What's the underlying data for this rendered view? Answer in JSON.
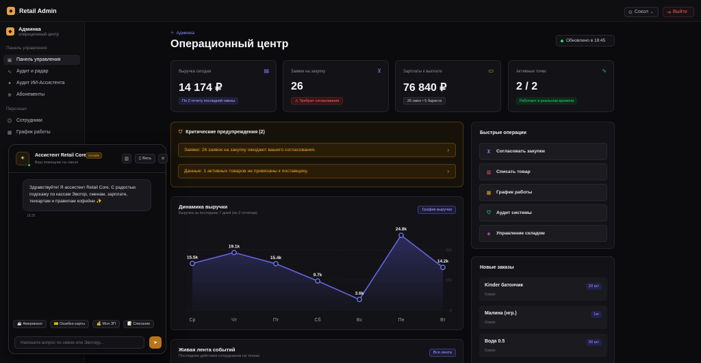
{
  "app": {
    "title": "Retail Admin"
  },
  "topbar": {
    "location": "Сокол",
    "logout": "Выйти"
  },
  "user": {
    "name": "Админка",
    "role": "операционный центр"
  },
  "sidebar": {
    "section_1": "Панель управления",
    "section_2": "Персонал",
    "items": [
      {
        "label": "Панель управления",
        "icon": "dashboard-icon"
      },
      {
        "label": "Аудит и радар",
        "icon": "activity-icon"
      },
      {
        "label": "Аудит ИИ-Ассистента",
        "icon": "sparkle-icon"
      },
      {
        "label": "Абонементы",
        "icon": "ticket-icon"
      },
      {
        "label": "Сотрудники",
        "icon": "users-icon"
      },
      {
        "label": "График работы",
        "icon": "calendar-icon"
      }
    ]
  },
  "header": {
    "breadcrumb": "Админка",
    "title": "Операционный центр",
    "updated": "Обновлено в 18:45"
  },
  "stats": [
    {
      "label": "Выручка сегодня",
      "value": "14 174 ₽",
      "badge": "По Z-отчету последней смены",
      "icon": "receipt-icon",
      "color": "#7b7bff"
    },
    {
      "label": "Заявки на закупку",
      "value": "26",
      "badge": "⚠ Требуют согласования",
      "icon": "cart-icon",
      "color": "#6b8cff"
    },
    {
      "label": "Зарплаты к выплате",
      "value": "76 840 ₽",
      "badge": "26 смен • 5 бариста",
      "icon": "wallet-icon",
      "color": "#e7a53a"
    },
    {
      "label": "Активные точки",
      "value": "2 / 2",
      "badge": "Работают в реальном времени",
      "icon": "pulse-icon",
      "color": "#2bd27a"
    }
  ],
  "alerts": {
    "title": "Критические предупреждения (2)",
    "items": [
      "Заявки: 26 заявок на закупку ожидают вашего согласования.",
      "Данные: 1 активных товаров не привязаны к поставщику."
    ]
  },
  "chart_card": {
    "title": "Динамика выручки",
    "subtitle": "Выручка за последние 7 дней (по Z-отчетам)",
    "button": "График выручки"
  },
  "chart_data": {
    "type": "area",
    "title": "Динамика выручки",
    "categories": [
      "Ср",
      "Чт",
      "Пт",
      "Сб",
      "Вс",
      "Пн",
      "Вт"
    ],
    "values": [
      15500,
      19100,
      15400,
      9700,
      3600,
      24800,
      14200
    ],
    "data_labels": [
      "15.5k",
      "19.1k",
      "15.4k",
      "9.7k",
      "3.6k",
      "24.8k",
      "14.2k"
    ],
    "y_ticks": [
      "0",
      "10k",
      "20k"
    ],
    "ylim": [
      0,
      28000
    ],
    "grid": true,
    "color": "#6565e0"
  },
  "events": {
    "title": "Живая лента событий",
    "subtitle": "Последние действия сотрудников на точках",
    "button": "Вся лента"
  },
  "quick": {
    "title": "Быстрые операции",
    "items": [
      {
        "label": "Согласовать закупки",
        "icon": "cart-icon",
        "color": "#7b7bff"
      },
      {
        "label": "Списать товар",
        "icon": "trash-icon",
        "color": "#f05a5a"
      },
      {
        "label": "График работы",
        "icon": "calendar-icon",
        "color": "#e7a53a"
      },
      {
        "label": "Аудит системы",
        "icon": "shield-icon",
        "color": "#2bd27a"
      },
      {
        "label": "Управление складом",
        "icon": "layers-icon",
        "color": "#c75bd6"
      }
    ]
  },
  "orders": {
    "title": "Новые заказы",
    "items": [
      {
        "name": "Kinder батончик",
        "location": "Сокол",
        "qty": "20 шт"
      },
      {
        "name": "Малина (нгр.)",
        "location": "Сокол",
        "qty": "1кг"
      },
      {
        "name": "Вода 0.5",
        "location": "Сокол",
        "qty": "30 шт"
      }
    ]
  },
  "assistant": {
    "name": "Ассистент Retail Core",
    "tag": "Онлайн",
    "subtitle": "Ваш помощник на смене",
    "wide_btn": "Весь",
    "message": "Здравствуйте! Я ассистент Retail Core. С радостью подскажу по кассам Эвотор, сменам, зарплате, техкартам и правилам кофейни ✨",
    "time": "18:35",
    "chips": [
      "☕ Американо",
      "💳 Ошибка карты",
      "💰 Моя ЗП",
      "📝 Списание"
    ],
    "input_placeholder": "Напишите вопрос по смене или Эвотору..."
  }
}
